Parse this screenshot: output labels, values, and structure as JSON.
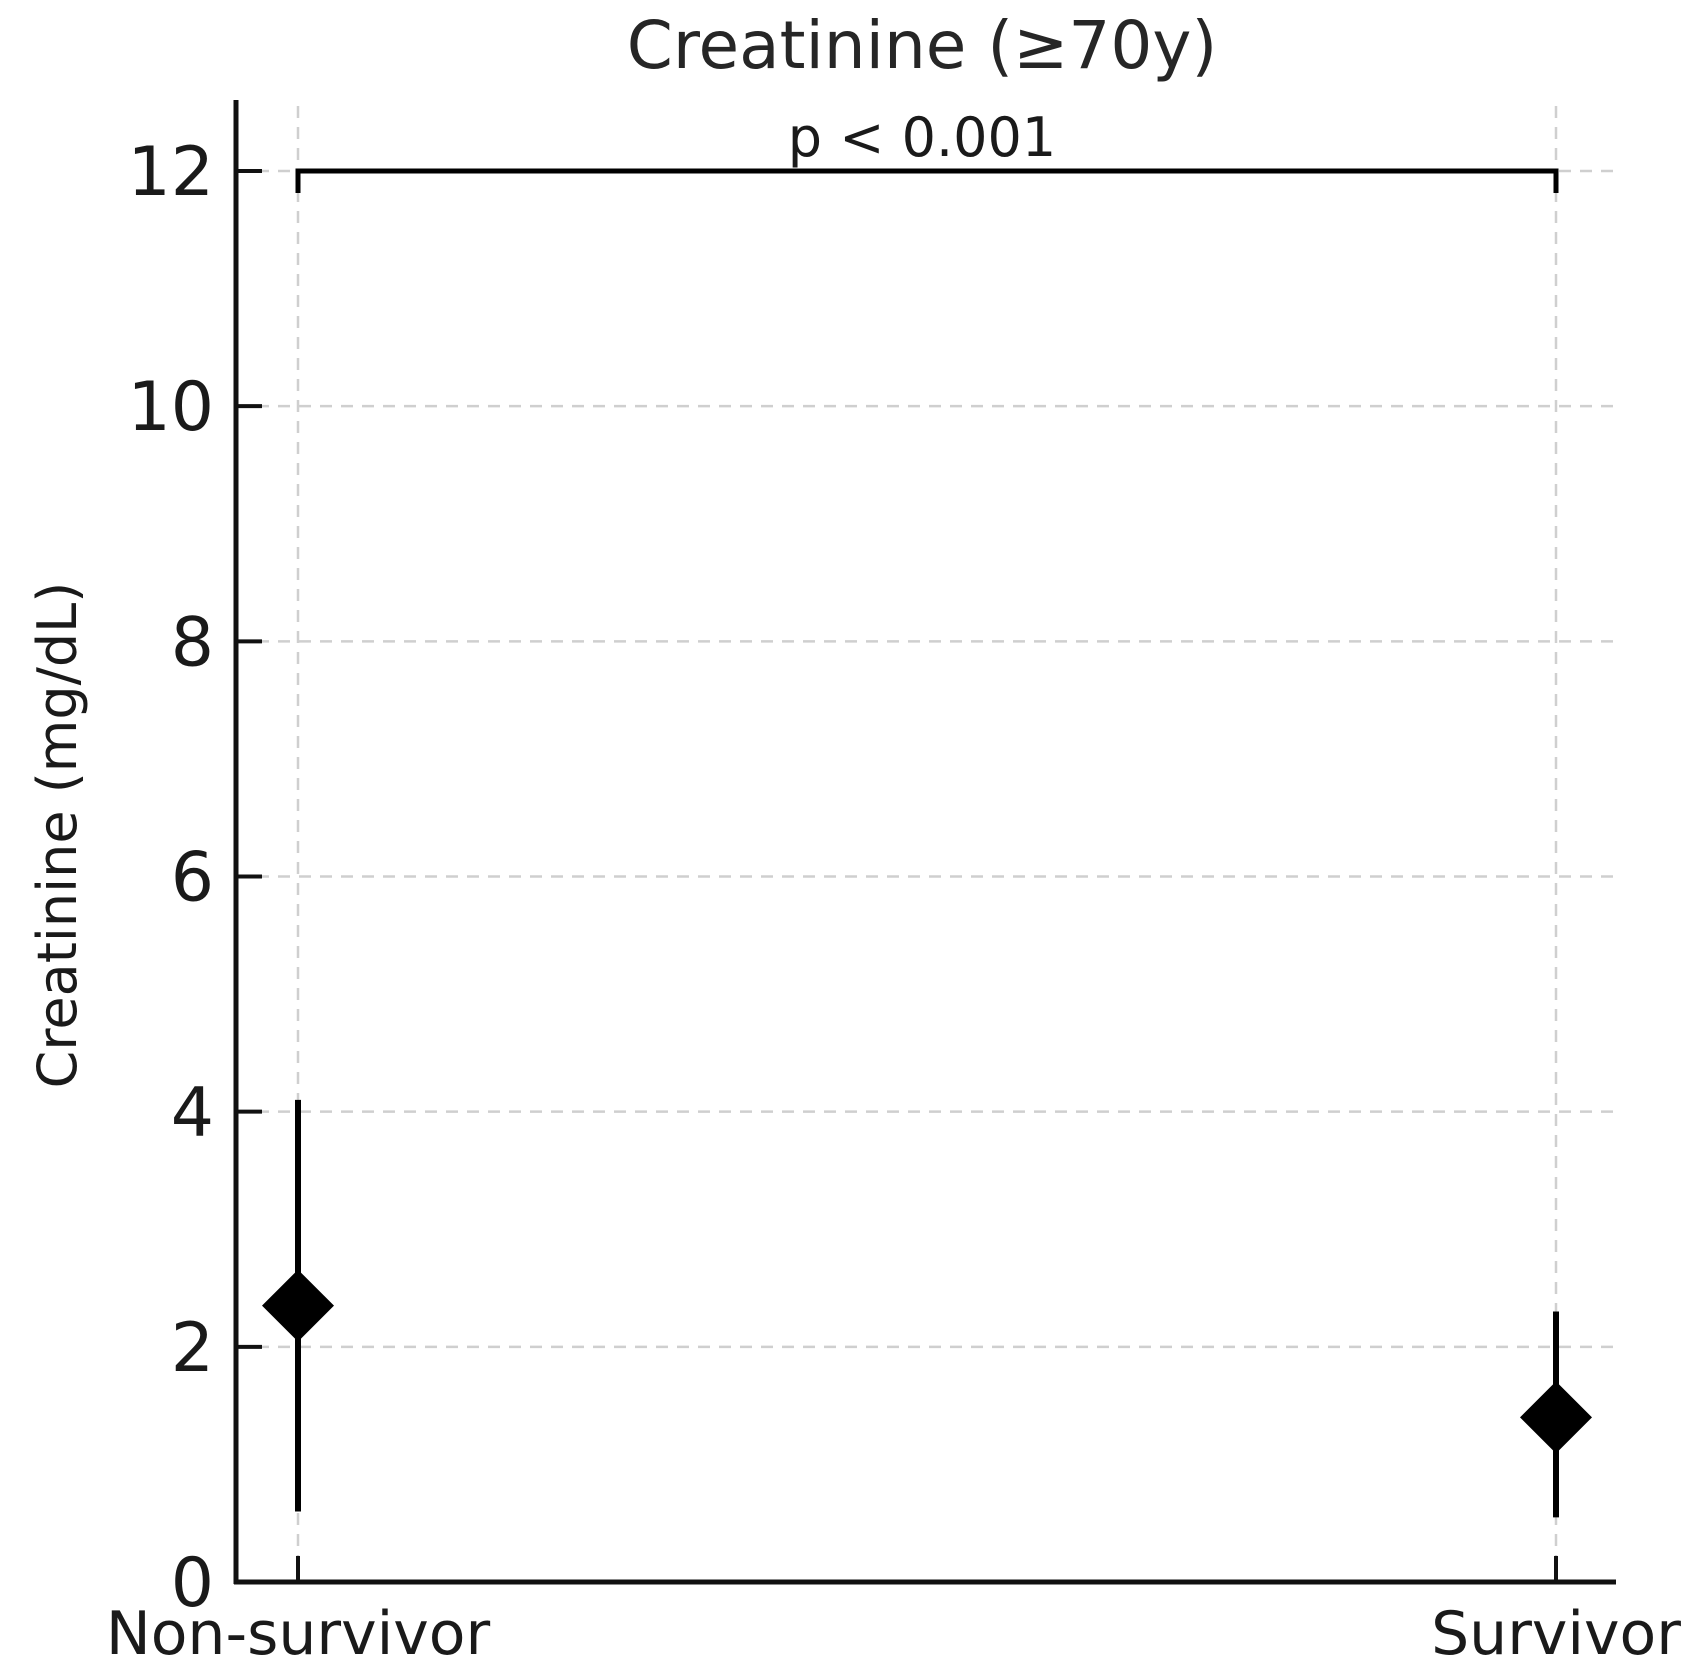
{
  "chart_data": {
    "type": "scatter",
    "title": "Creatinine (≥70y)",
    "ylabel": "Creatinine (mg/dL)",
    "xlabel": "",
    "ylim": [
      0,
      12.6
    ],
    "yticks": [
      0,
      2,
      4,
      6,
      8,
      10,
      12
    ],
    "categories": [
      "Non-survivor",
      "Survivor"
    ],
    "grid": true,
    "marker": "diamond",
    "points": [
      {
        "category": "Non-survivor",
        "center": 2.35,
        "low": 0.6,
        "high": 4.1
      },
      {
        "category": "Survivor",
        "center": 1.4,
        "low": 0.55,
        "high": 2.3
      }
    ],
    "annotation": {
      "text": "p < 0.001",
      "y": 12.0,
      "from": "Non-survivor",
      "to": "Survivor"
    }
  }
}
